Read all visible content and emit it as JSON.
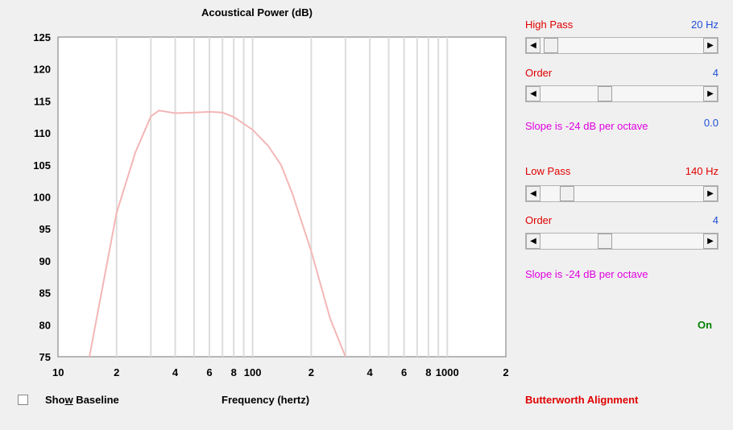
{
  "chart_data": {
    "type": "line",
    "title": "Acoustical Power (dB)",
    "xlabel": "Frequency (hertz)",
    "ylabel": "",
    "x_scale": "log",
    "xlim": [
      10,
      2000
    ],
    "ylim": [
      75,
      125
    ],
    "y_ticks": [
      "125",
      "120",
      "115",
      "110",
      "105",
      "100",
      "95",
      "90",
      "85",
      "80",
      "75"
    ],
    "x_ticks": [
      {
        "value": 10,
        "label": "10"
      },
      {
        "value": 20,
        "label": "2"
      },
      {
        "value": 40,
        "label": "4"
      },
      {
        "value": 60,
        "label": "6"
      },
      {
        "value": 80,
        "label": "8"
      },
      {
        "value": 100,
        "label": "100"
      },
      {
        "value": 200,
        "label": "2"
      },
      {
        "value": 400,
        "label": "4"
      },
      {
        "value": 600,
        "label": "6"
      },
      {
        "value": 800,
        "label": "8"
      },
      {
        "value": 1000,
        "label": "1000"
      },
      {
        "value": 2000,
        "label": "2"
      }
    ],
    "grid": true,
    "line_color": "#f4b6b6",
    "series": [
      {
        "x": [
          14.5,
          20,
          25,
          30,
          33,
          40,
          50,
          60,
          70,
          80,
          100,
          120,
          140,
          160,
          200,
          250,
          300
        ],
        "values": [
          75,
          97.5,
          107,
          112.6,
          113.5,
          113.1,
          113.2,
          113.3,
          113.2,
          112.5,
          110.5,
          108,
          105,
          100.5,
          91.5,
          81,
          75
        ]
      }
    ]
  },
  "controls": {
    "high_pass": {
      "label": "High Pass",
      "value": "20 Hz",
      "position": 0.02
    },
    "high_order": {
      "label": "Order",
      "value": "4",
      "position": 0.38
    },
    "high_slope": {
      "text": "Slope is -24 dB per octave",
      "value": "0.0"
    },
    "low_pass": {
      "label": "Low Pass",
      "value": "140 Hz",
      "position": 0.13
    },
    "low_order": {
      "label": "Order",
      "value": "4",
      "position": 0.38
    },
    "low_slope": {
      "text": "Slope is -24 dB per octave"
    },
    "status": "On",
    "alignment": "Butterworth Alignment"
  },
  "baseline": {
    "label": "Show Baseline",
    "mnemonic_prefix": "Sho",
    "mnemonic": "w",
    "mnemonic_suffix": " Baseline",
    "checked": false
  },
  "colors": {
    "label_red": "#e00000",
    "value_blue": "#1f4fd6",
    "slope_magenta": "#e000e0",
    "status_green": "#008000"
  }
}
